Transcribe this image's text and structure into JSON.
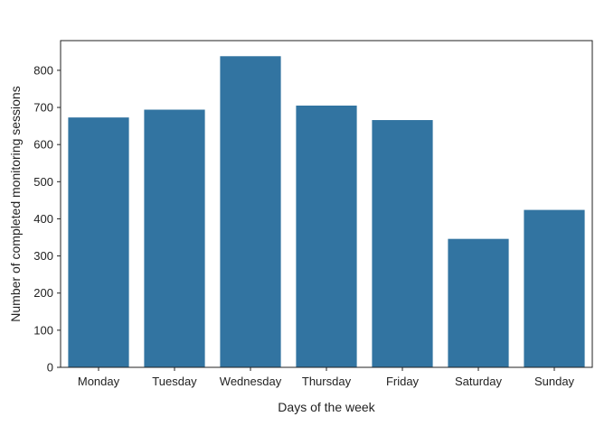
{
  "chart_data": {
    "type": "bar",
    "categories": [
      "Monday",
      "Tuesday",
      "Wednesday",
      "Thursday",
      "Friday",
      "Saturday",
      "Sunday"
    ],
    "values": [
      673,
      694,
      838,
      705,
      666,
      346,
      424
    ],
    "xlabel": "Days of the week",
    "ylabel": "Number of completed monitoring sessions",
    "ylim": [
      0,
      880
    ],
    "yticks": [
      0,
      100,
      200,
      300,
      400,
      500,
      600,
      700,
      800
    ],
    "bar_color": "#3274a1",
    "grid": false,
    "legend": "none"
  }
}
